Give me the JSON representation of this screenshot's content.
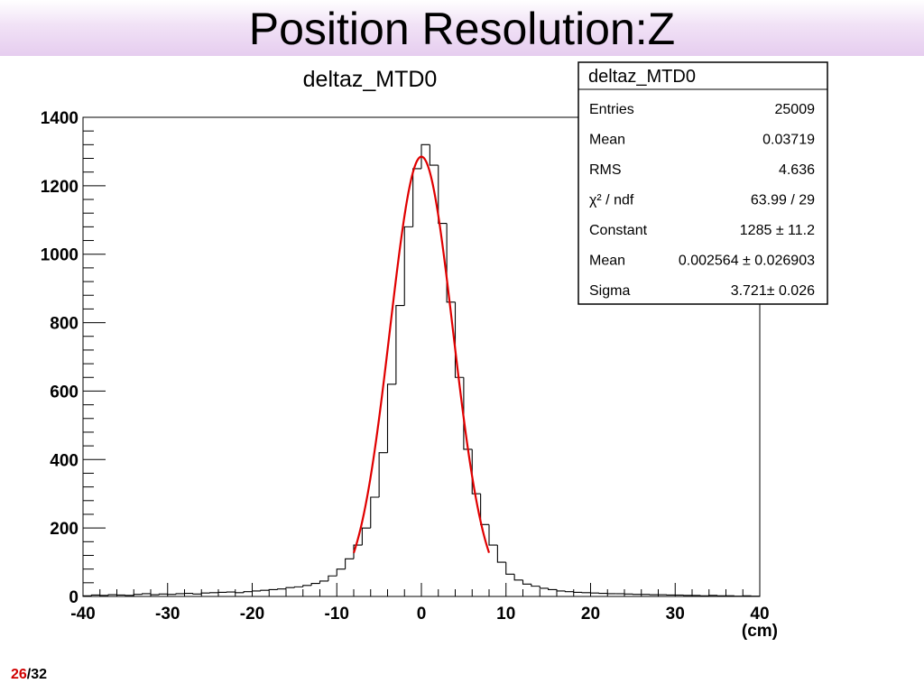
{
  "slide": {
    "title": "Position Resolution:Z",
    "page_current": "26",
    "page_separator": "/",
    "page_total": "32"
  },
  "stats_box": {
    "title": "deltaz_MTD0",
    "rows": [
      {
        "label": "Entries",
        "value": "25009"
      },
      {
        "label": "Mean",
        "value": "0.03719"
      },
      {
        "label": "RMS",
        "value": "4.636"
      },
      {
        "label": "χ² / ndf",
        "value": "63.99 / 29"
      },
      {
        "label": "Constant",
        "value": "1285 ± 11.2"
      },
      {
        "label": "Mean",
        "value": "0.002564 ± 0.026903"
      },
      {
        "label": "Sigma",
        "value": "3.721± 0.026"
      }
    ]
  },
  "colors": {
    "histogram": "#000000",
    "fit": "#e00000",
    "title_band": "#e6cdef"
  },
  "chart_data": {
    "type": "histogram",
    "title": "deltaz_MTD0",
    "xlabel": "(cm)",
    "ylabel": "",
    "xlim": [
      -40,
      40
    ],
    "ylim": [
      0,
      1400
    ],
    "x_ticks": [
      "-40",
      "-30",
      "-20",
      "-10",
      "0",
      "10",
      "20",
      "30",
      "40"
    ],
    "y_ticks": [
      "0",
      "200",
      "400",
      "600",
      "800",
      "1000",
      "1200",
      "1400"
    ],
    "bin_width": 1,
    "bin_low_edges": [
      -40,
      -39,
      -38,
      -37,
      -36,
      -35,
      -34,
      -33,
      -32,
      -31,
      -30,
      -29,
      -28,
      -27,
      -26,
      -25,
      -24,
      -23,
      -22,
      -21,
      -20,
      -19,
      -18,
      -17,
      -16,
      -15,
      -14,
      -13,
      -12,
      -11,
      -10,
      -9,
      -8,
      -7,
      -6,
      -5,
      -4,
      -3,
      -2,
      -1,
      0,
      1,
      2,
      3,
      4,
      5,
      6,
      7,
      8,
      9,
      10,
      11,
      12,
      13,
      14,
      15,
      16,
      17,
      18,
      19,
      20,
      21,
      22,
      23,
      24,
      25,
      26,
      27,
      28,
      29,
      30,
      31,
      32,
      33,
      34,
      35,
      36,
      37,
      38,
      39
    ],
    "counts": [
      2,
      4,
      3,
      5,
      4,
      3,
      6,
      8,
      5,
      7,
      6,
      8,
      9,
      7,
      10,
      11,
      12,
      13,
      11,
      14,
      16,
      18,
      20,
      22,
      26,
      28,
      32,
      38,
      45,
      60,
      80,
      110,
      150,
      200,
      290,
      420,
      620,
      850,
      1080,
      1250,
      1320,
      1260,
      1090,
      860,
      640,
      430,
      300,
      210,
      150,
      100,
      65,
      48,
      36,
      30,
      24,
      20,
      16,
      14,
      12,
      11,
      10,
      9,
      8,
      8,
      7,
      6,
      6,
      5,
      5,
      4,
      4,
      3,
      3,
      2,
      3,
      2,
      2,
      1,
      2,
      1
    ],
    "fit": {
      "function": "gaus",
      "constant": 1285,
      "mean": 0.002564,
      "sigma": 3.721,
      "range": [
        -8,
        8
      ]
    }
  }
}
